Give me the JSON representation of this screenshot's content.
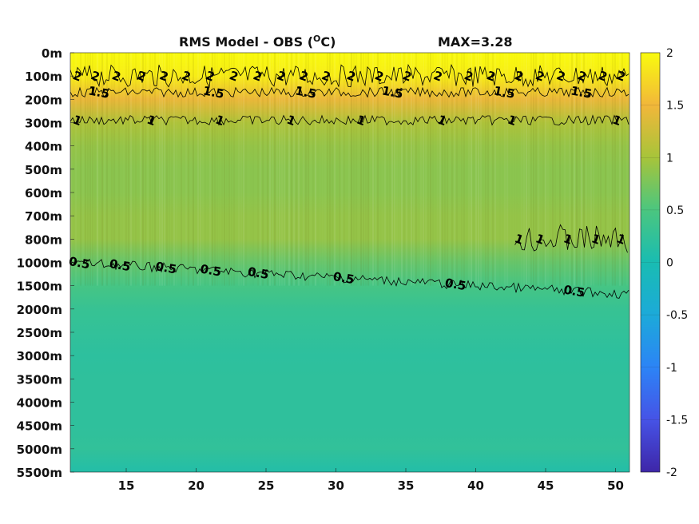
{
  "chart_data": {
    "type": "heatmap",
    "title": "RMS Model - OBS (",
    "title_unit": "O",
    "title_suffix": "C)",
    "max_label": "MAX=3.28",
    "x_ticks": [
      "15",
      "20",
      "25",
      "30",
      "35",
      "40",
      "45",
      "50"
    ],
    "x_tick_values": [
      15,
      20,
      25,
      30,
      35,
      40,
      45,
      50
    ],
    "xlim": [
      11,
      51
    ],
    "y_ticks": [
      "0m",
      "100m",
      "200m",
      "300m",
      "400m",
      "500m",
      "600m",
      "700m",
      "800m",
      "1000m",
      "1500m",
      "2000m",
      "2500m",
      "3000m",
      "3500m",
      "4000m",
      "4500m",
      "5000m",
      "5500m"
    ],
    "colorbar": {
      "ticks": [
        "2",
        "1.5",
        "1",
        "0.5",
        "0",
        "-0.5",
        "-1",
        "-1.5",
        "-2"
      ],
      "range": [
        -2,
        2
      ],
      "colormap": "parula"
    },
    "depth_profile": [
      {
        "depth": "0m",
        "value": 2.0
      },
      {
        "depth": "100m",
        "value": 1.9
      },
      {
        "depth": "200m",
        "value": 1.45
      },
      {
        "depth": "300m",
        "value": 1.05
      },
      {
        "depth": "400m",
        "value": 0.9
      },
      {
        "depth": "500m",
        "value": 0.85
      },
      {
        "depth": "600m",
        "value": 0.85
      },
      {
        "depth": "700m",
        "value": 0.9
      },
      {
        "depth": "800m",
        "value": 0.9
      },
      {
        "depth": "1000m",
        "value": 0.65
      },
      {
        "depth": "1500m",
        "value": 0.45
      },
      {
        "depth": "2000m",
        "value": 0.3
      },
      {
        "depth": "2500m",
        "value": 0.25
      },
      {
        "depth": "3000m",
        "value": 0.2
      },
      {
        "depth": "3500m",
        "value": 0.22
      },
      {
        "depth": "4000m",
        "value": 0.22
      },
      {
        "depth": "4500m",
        "value": 0.22
      },
      {
        "depth": "5000m",
        "value": 0.25
      },
      {
        "depth": "5500m",
        "value": 0.1
      }
    ],
    "contours": [
      {
        "level": "2",
        "depth": "100m",
        "labels_x": [
          11.4,
          12.7,
          14.2,
          16.0,
          17.6,
          19.2,
          20.9,
          22.6,
          24.3,
          26.0,
          27.6,
          29.2,
          31.0,
          33.0,
          35.0,
          37.2,
          39.4,
          41.0,
          43.0,
          44.5,
          46.0,
          47.5,
          49.0,
          50.3
        ]
      },
      {
        "level": "1.5",
        "depth": "170m",
        "labels_x": [
          13.0,
          21.2,
          27.8,
          34.0,
          42.0,
          47.5
        ]
      },
      {
        "level": "1",
        "depth": "290m",
        "labels_x": [
          11.4,
          16.7,
          21.6,
          26.7,
          31.7,
          37.5,
          42.5,
          50.0
        ]
      },
      {
        "level": "0.5",
        "depth": "1000m",
        "labels_x": [
          11.6,
          14.5,
          17.8,
          21.0,
          24.4,
          30.5,
          38.5,
          47.0
        ]
      },
      {
        "level": "1",
        "depth": "800m",
        "labels_x": [
          43.0,
          44.5,
          46.5,
          48.5,
          50.3
        ]
      }
    ]
  }
}
